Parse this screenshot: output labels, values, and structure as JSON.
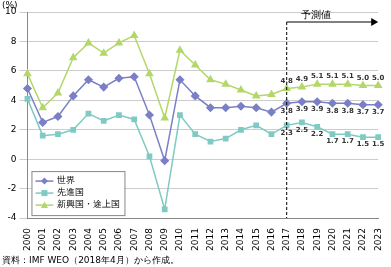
{
  "chart_data": {
    "type": "line",
    "ylabel": "(%)",
    "categories": [
      "2000",
      "2001",
      "2002",
      "2003",
      "2004",
      "2005",
      "2006",
      "2007",
      "2008",
      "2009",
      "2010",
      "2011",
      "2012",
      "2013",
      "2014",
      "2015",
      "2016",
      "2017",
      "2018",
      "2019",
      "2020",
      "2021",
      "2022",
      "2023"
    ],
    "series": [
      {
        "name": "世界",
        "color": "#7b7fc6",
        "marker": "diamond",
        "values": [
          4.8,
          2.5,
          2.9,
          4.3,
          5.4,
          4.9,
          5.5,
          5.6,
          3.0,
          -0.1,
          5.4,
          4.3,
          3.5,
          3.5,
          3.6,
          3.5,
          3.2,
          3.8,
          3.9,
          3.9,
          3.8,
          3.8,
          3.7,
          3.7
        ],
        "value_labels": [
          null,
          null,
          null,
          null,
          null,
          null,
          null,
          null,
          null,
          null,
          null,
          null,
          null,
          null,
          null,
          null,
          null,
          "3.8",
          "3.9",
          "3.9",
          "3.8",
          "3.8",
          "3.7",
          "3.7"
        ]
      },
      {
        "name": "先進国",
        "color": "#7fcbc4",
        "marker": "square",
        "values": [
          4.1,
          1.6,
          1.7,
          2.0,
          3.1,
          2.6,
          3.0,
          2.7,
          0.2,
          -3.4,
          3.0,
          1.7,
          1.2,
          1.4,
          2.0,
          2.3,
          1.7,
          2.3,
          2.5,
          2.2,
          1.7,
          1.7,
          1.5,
          1.5
        ],
        "value_labels": [
          null,
          null,
          null,
          null,
          null,
          null,
          null,
          null,
          null,
          null,
          null,
          null,
          null,
          null,
          null,
          null,
          null,
          "2.3",
          "2.5",
          "2.2",
          "1.7",
          "1.7",
          "1.5",
          "1.5"
        ]
      },
      {
        "name": "新興国・途上国",
        "color": "#b3d76a",
        "marker": "triangle",
        "values": [
          5.8,
          3.5,
          4.5,
          6.9,
          7.9,
          7.2,
          7.9,
          8.4,
          5.8,
          2.8,
          7.4,
          6.4,
          5.4,
          5.1,
          4.7,
          4.3,
          4.4,
          4.8,
          4.9,
          5.1,
          5.1,
          5.1,
          5.0,
          5.0
        ],
        "value_labels": [
          null,
          null,
          null,
          null,
          null,
          null,
          null,
          null,
          null,
          null,
          null,
          null,
          null,
          null,
          null,
          null,
          null,
          "4.8",
          "4.9",
          "5.1",
          "5.1",
          "5.1",
          "5.0",
          "5.0"
        ]
      }
    ],
    "ylim": [
      -4,
      10
    ],
    "yticks": [
      -4,
      -2,
      0,
      2,
      4,
      6,
      8,
      10
    ],
    "grid": true,
    "legend": "lower left",
    "data_labels": true,
    "annotations": [
      {
        "text": "予測値",
        "x": "2017"
      }
    ],
    "source": "資料：IMF WEO（2018年4月）から作成。"
  }
}
